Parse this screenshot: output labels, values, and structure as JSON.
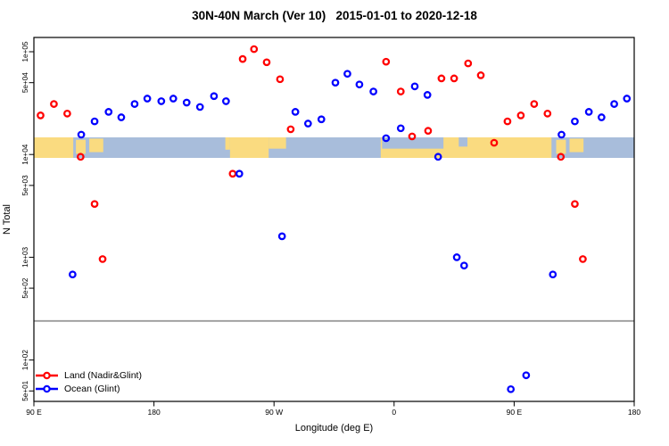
{
  "title": "30N-40N March (Ver 10)   2015-01-01 to 2020-12-18",
  "axes": {
    "x_label": "Longitude (deg E)",
    "y_label": "N Total"
  },
  "legend": {
    "items": [
      {
        "label": "Land (Nadir&Glint)",
        "color": "#ff0000"
      },
      {
        "label": "Ocean (Glint)",
        "color": "#0000ff"
      }
    ]
  },
  "colors": {
    "land_series": "#ff0000",
    "ocean_series": "#0000ff",
    "map_land": "#fadb80",
    "map_ocean": "#a8bddb",
    "threshold_line": "#9b9b9b",
    "axis": "#000000"
  },
  "chart_data": {
    "type": "scatter",
    "title": "30N-40N March (Ver 10)   2015-01-01 to 2020-12-18",
    "xlabel": "Longitude (deg E)",
    "ylabel": "N Total",
    "x_axis": {
      "note": "longitude axis spans 450 deg, wrapping 90E-180-90W-0-90E-180",
      "range": [
        90,
        540
      ],
      "tick_positions": [
        90,
        180,
        270,
        360,
        450,
        540
      ],
      "tick_labels": [
        "90 E",
        "180",
        "90 W",
        "0",
        "90 E",
        "180"
      ]
    },
    "y_axis": {
      "scale": "log",
      "range": [
        40,
        138000
      ],
      "tick_values": [
        100000,
        50000,
        10000,
        5000,
        1000,
        500,
        100,
        50
      ],
      "tick_labels": [
        "1e+05",
        "5e+04",
        "1e+04",
        "5e+03",
        "1e+03",
        "5e+02",
        "1e+02",
        "5e+01"
      ]
    },
    "grid": false,
    "legend_position": "bottom-left",
    "threshold_line": {
      "value": 240,
      "color": "#9b9b9b"
    },
    "map_strip": {
      "note": "30N-40N land/ocean strip drawn across 1e4 level",
      "value_top": 14500,
      "value_bottom": 9300,
      "ocean_base": [
        90,
        540
      ],
      "land_segments": [
        {
          "lon1": 90,
          "lon2": 119.5,
          "top": 0,
          "bottom": 1
        },
        {
          "lon1": 121.5,
          "lon2": 128.8,
          "top": 0.12,
          "bottom": 0.8
        },
        {
          "lon1": 131.5,
          "lon2": 142,
          "top": 0.06,
          "bottom": 0.72
        },
        {
          "lon1": 233.5,
          "lon2": 237,
          "top": 0,
          "bottom": 0.6
        },
        {
          "lon1": 237,
          "lon2": 266,
          "top": 0,
          "bottom": 1
        },
        {
          "lon1": 266,
          "lon2": 279,
          "top": 0,
          "bottom": 0.55
        },
        {
          "lon1": 350,
          "lon2": 478,
          "top": 0,
          "bottom": 1
        },
        {
          "lon1": 481.5,
          "lon2": 488.8,
          "top": 0.12,
          "bottom": 0.8
        },
        {
          "lon1": 491.5,
          "lon2": 502,
          "top": 0.06,
          "bottom": 0.72
        }
      ],
      "ocean_overlays": [
        {
          "lon1": 351,
          "lon2": 397,
          "top": 0,
          "bottom": 0.55
        },
        {
          "lon1": 408.5,
          "lon2": 415,
          "top": 0,
          "bottom": 0.45
        }
      ]
    },
    "series": [
      {
        "name": "Land (Nadir&Glint)",
        "color": "#ff0000",
        "marker": "open-circle",
        "points": [
          {
            "lon": 95,
            "n": 24000
          },
          {
            "lon": 105,
            "n": 31000
          },
          {
            "lon": 115,
            "n": 25000
          },
          {
            "lon": 125,
            "n": 9500
          },
          {
            "lon": 135.5,
            "n": 3300
          },
          {
            "lon": 141.5,
            "n": 960
          },
          {
            "lon": 239,
            "n": 6500
          },
          {
            "lon": 246.5,
            "n": 85000
          },
          {
            "lon": 255,
            "n": 106000
          },
          {
            "lon": 264.5,
            "n": 79000
          },
          {
            "lon": 274.5,
            "n": 54000
          },
          {
            "lon": 282.5,
            "n": 17600
          },
          {
            "lon": 354,
            "n": 80000
          },
          {
            "lon": 365,
            "n": 41000
          },
          {
            "lon": 373.5,
            "n": 15000
          },
          {
            "lon": 385.5,
            "n": 17000
          },
          {
            "lon": 395.5,
            "n": 55000
          },
          {
            "lon": 405,
            "n": 55000
          },
          {
            "lon": 415.5,
            "n": 77000
          },
          {
            "lon": 425,
            "n": 59000
          },
          {
            "lon": 435,
            "n": 13000
          },
          {
            "lon": 445,
            "n": 21000
          },
          {
            "lon": 455,
            "n": 24000
          },
          {
            "lon": 465,
            "n": 31000
          },
          {
            "lon": 475,
            "n": 25000
          },
          {
            "lon": 485,
            "n": 9500
          },
          {
            "lon": 495.5,
            "n": 3300
          },
          {
            "lon": 501.5,
            "n": 960
          }
        ]
      },
      {
        "name": "Ocean (Glint)",
        "color": "#0000ff",
        "marker": "open-circle",
        "points": [
          {
            "lon": 119,
            "n": 680
          },
          {
            "lon": 125.5,
            "n": 15600
          },
          {
            "lon": 135.5,
            "n": 21000
          },
          {
            "lon": 146,
            "n": 26000
          },
          {
            "lon": 155.5,
            "n": 23000
          },
          {
            "lon": 165.5,
            "n": 31000
          },
          {
            "lon": 175,
            "n": 35000
          },
          {
            "lon": 185.5,
            "n": 33000
          },
          {
            "lon": 194.5,
            "n": 35000
          },
          {
            "lon": 204.5,
            "n": 32000
          },
          {
            "lon": 214.5,
            "n": 29000
          },
          {
            "lon": 225,
            "n": 37000
          },
          {
            "lon": 234,
            "n": 33000
          },
          {
            "lon": 244,
            "n": 6500
          },
          {
            "lon": 276,
            "n": 1600
          },
          {
            "lon": 286,
            "n": 26000
          },
          {
            "lon": 295.5,
            "n": 20000
          },
          {
            "lon": 305.5,
            "n": 22000
          },
          {
            "lon": 316,
            "n": 50000
          },
          {
            "lon": 325,
            "n": 61000
          },
          {
            "lon": 334,
            "n": 48000
          },
          {
            "lon": 344.5,
            "n": 41000
          },
          {
            "lon": 354,
            "n": 14400
          },
          {
            "lon": 365,
            "n": 18000
          },
          {
            "lon": 375.5,
            "n": 46000
          },
          {
            "lon": 385,
            "n": 38000
          },
          {
            "lon": 393,
            "n": 9500
          },
          {
            "lon": 407,
            "n": 1000
          },
          {
            "lon": 412.5,
            "n": 830
          },
          {
            "lon": 447.5,
            "n": 52
          },
          {
            "lon": 459,
            "n": 71
          },
          {
            "lon": 479,
            "n": 680
          },
          {
            "lon": 485.5,
            "n": 15600
          },
          {
            "lon": 495.5,
            "n": 21000
          },
          {
            "lon": 506,
            "n": 26000
          },
          {
            "lon": 515.5,
            "n": 23000
          },
          {
            "lon": 525,
            "n": 31000
          },
          {
            "lon": 534.5,
            "n": 35000
          }
        ]
      }
    ]
  }
}
